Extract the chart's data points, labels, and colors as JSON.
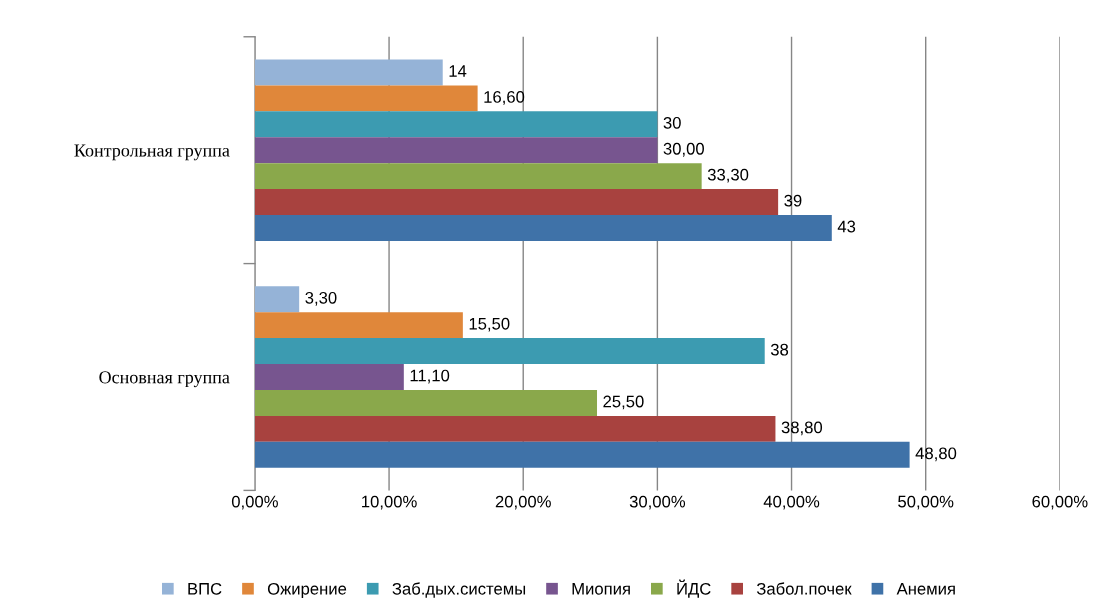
{
  "chart_data": {
    "type": "bar",
    "orientation": "horizontal",
    "categories": [
      "Контрольная группа",
      "Основная группа"
    ],
    "series": [
      {
        "name": "ВПС",
        "color": "#95b3d7",
        "values": [
          14,
          3.3
        ],
        "value_labels": [
          "14",
          "3,30"
        ]
      },
      {
        "name": "Ожирение",
        "color": "#e0873a",
        "values": [
          16.6,
          15.5
        ],
        "value_labels": [
          "16,60",
          "15,50"
        ]
      },
      {
        "name": "Заб.дых.системы",
        "color": "#3c9bb1",
        "values": [
          30,
          38
        ],
        "value_labels": [
          "30",
          "38"
        ]
      },
      {
        "name": "Миопия",
        "color": "#77558f",
        "values": [
          30,
          11.1
        ],
        "value_labels": [
          "30,00",
          "11,10"
        ]
      },
      {
        "name": "ЙДС",
        "color": "#8aa84b",
        "values": [
          33.3,
          25.5
        ],
        "value_labels": [
          "33,30",
          "25,50"
        ]
      },
      {
        "name": "Забол.почек",
        "color": "#a8423f",
        "values": [
          39,
          38.8
        ],
        "value_labels": [
          "39",
          "38,80"
        ]
      },
      {
        "name": "Анемия",
        "color": "#3f72a8",
        "values": [
          43,
          48.8
        ],
        "value_labels": [
          "43",
          "48,80"
        ]
      }
    ],
    "xlim": [
      0,
      60
    ],
    "xticks": [
      {
        "value": 0,
        "label": "0,00%"
      },
      {
        "value": 10,
        "label": "10,00%"
      },
      {
        "value": 20,
        "label": "20,00%"
      },
      {
        "value": 30,
        "label": "30,00%"
      },
      {
        "value": 40,
        "label": "40,00%"
      },
      {
        "value": 50,
        "label": "50,00%"
      },
      {
        "value": 60,
        "label": "60,00%"
      }
    ],
    "grid": "x",
    "legend": "bottom"
  }
}
